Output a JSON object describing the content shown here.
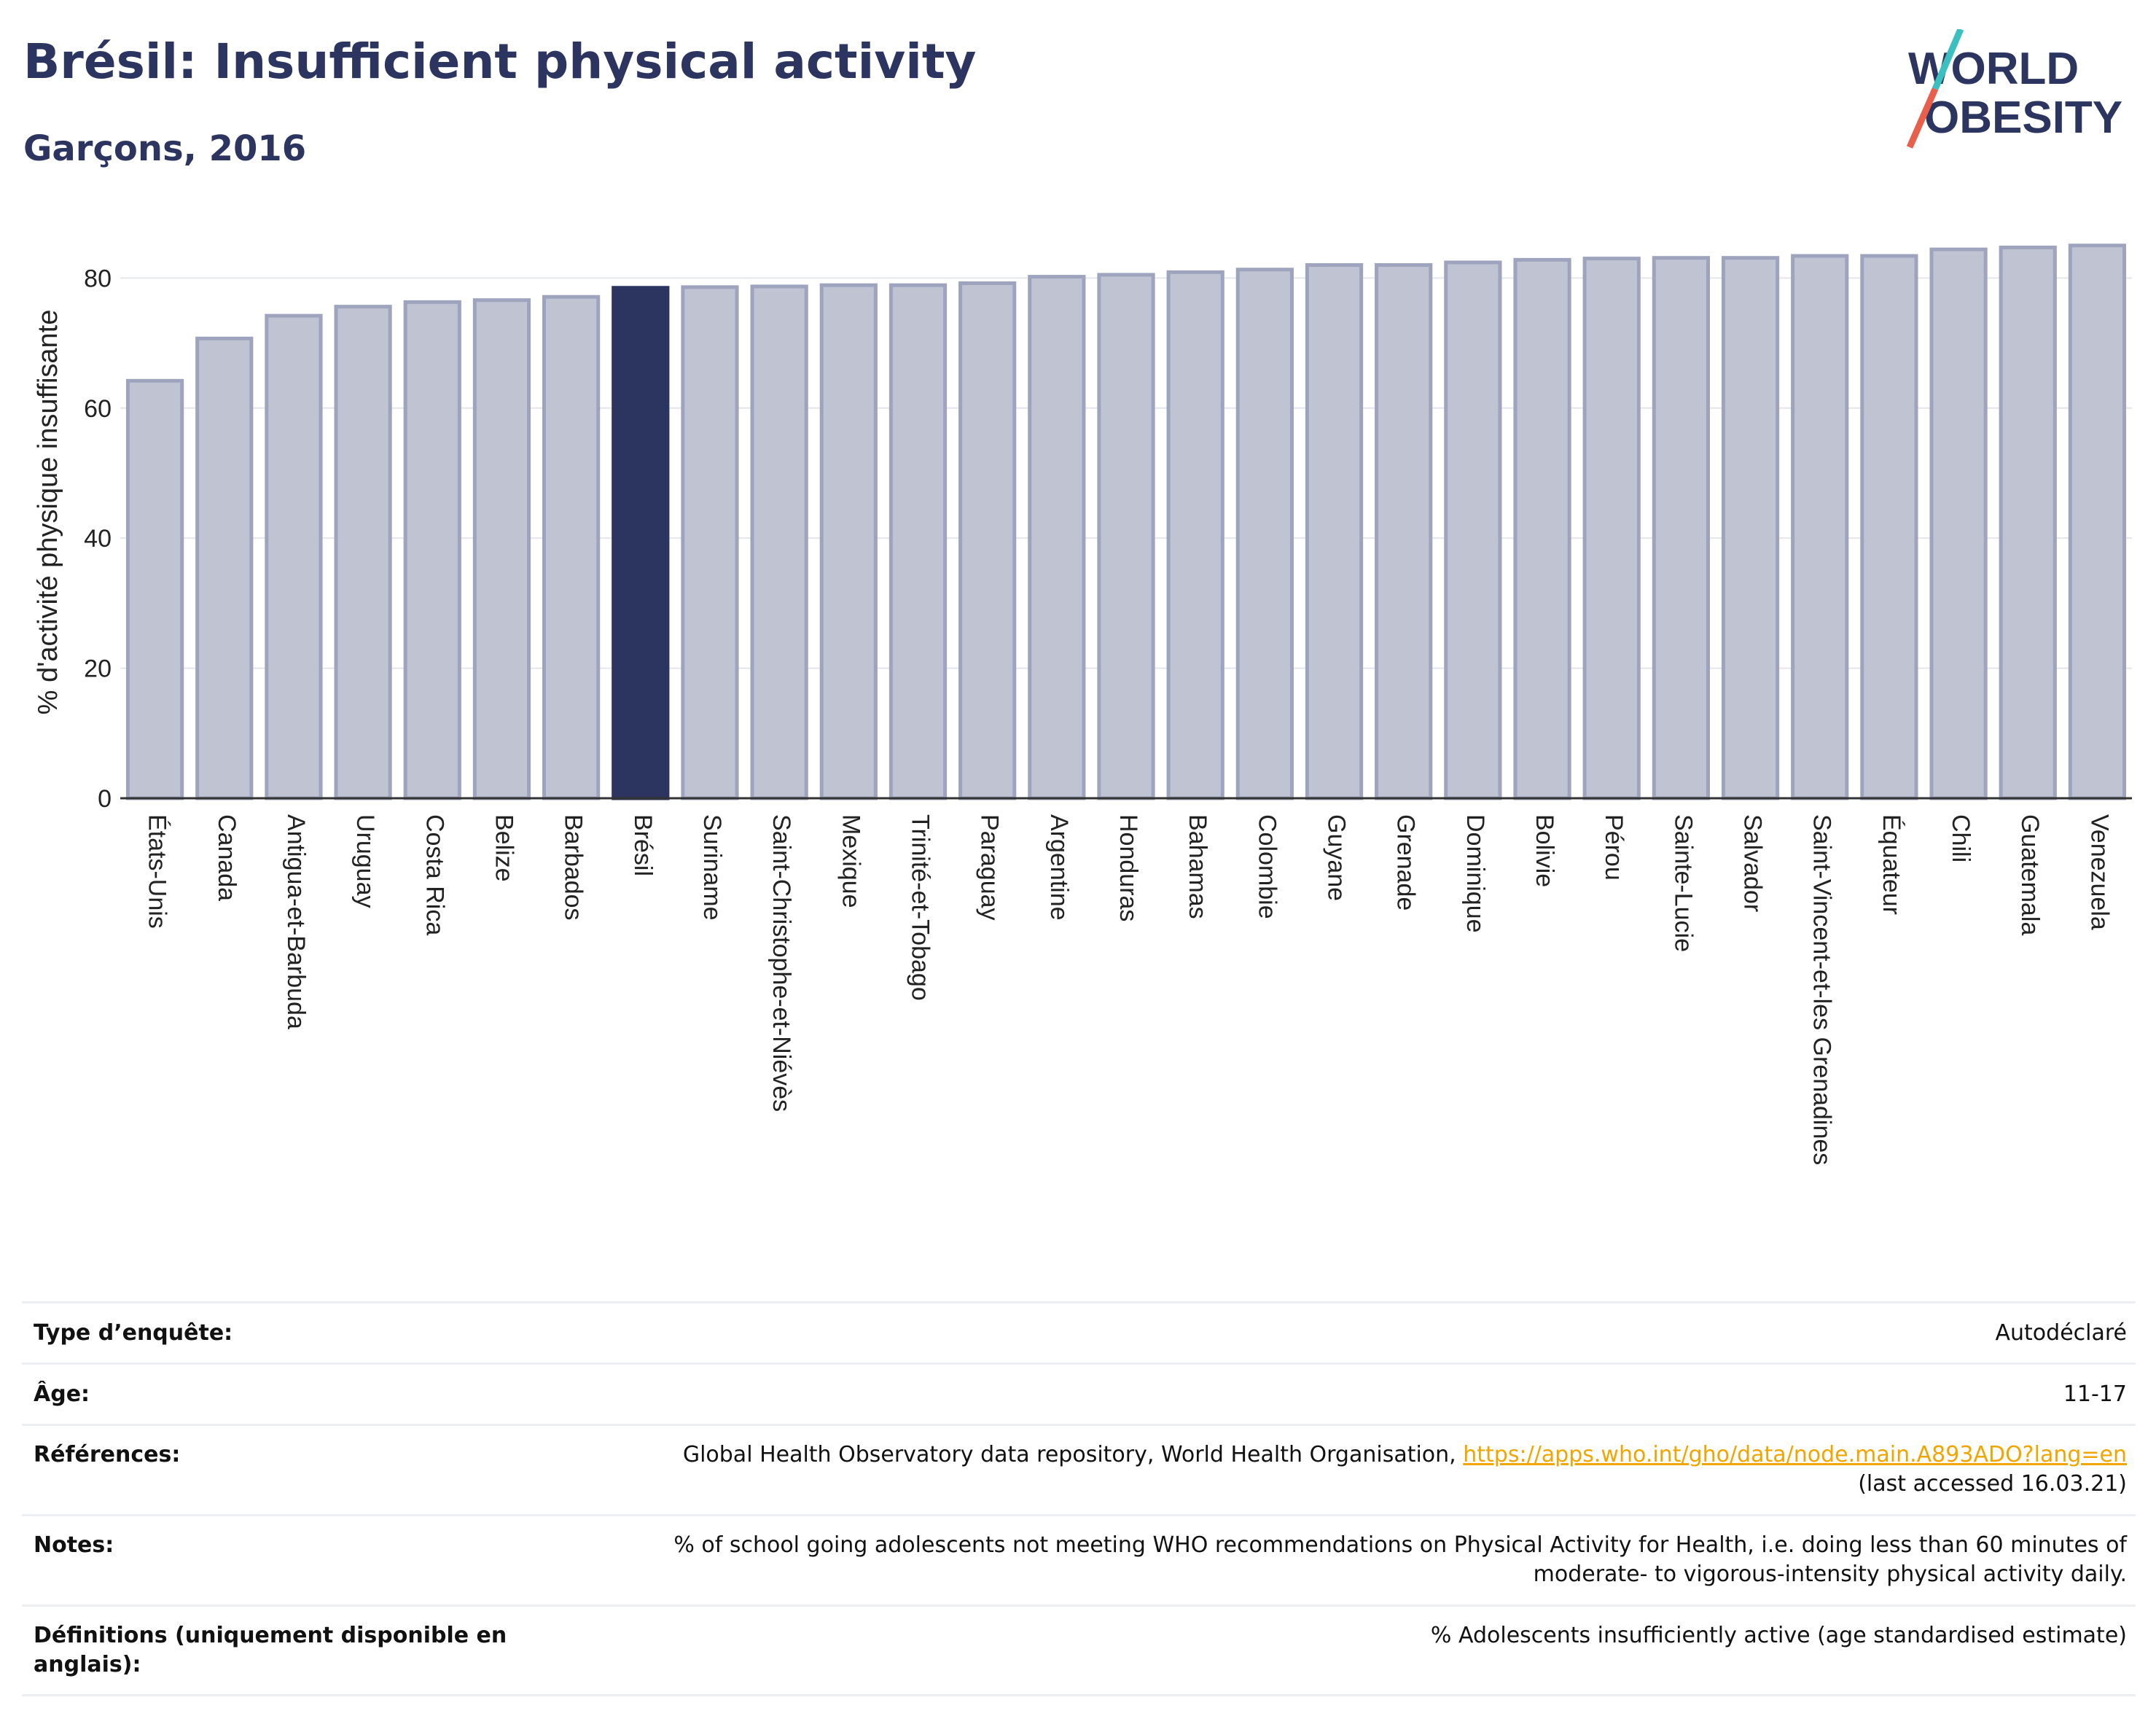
{
  "header": {
    "title": "Brésil: Insufficient physical activity",
    "subtitle": "Garçons, 2016"
  },
  "logo": {
    "line1": "WORLD",
    "line2": "OBESITY"
  },
  "colors": {
    "highlight": "#2b3560",
    "bar": "#c0c3d1",
    "bar_border": "#9ea4bd",
    "accent": "#f0a500"
  },
  "chart_data": {
    "type": "bar",
    "title": "",
    "xlabel": "",
    "ylabel": "% d'activité physique insuffisante",
    "ylim": [
      0,
      88
    ],
    "yticks": [
      0,
      20,
      40,
      60,
      80
    ],
    "grid": true,
    "highlight": "Brésil",
    "categories": [
      "États-Unis",
      "Canada",
      "Antigua-et-Barbuda",
      "Uruguay",
      "Costa Rica",
      "Belize",
      "Barbados",
      "Brésil",
      "Suriname",
      "Saint-Christophe-et-Niévès",
      "Mexique",
      "Trinité-et-Tobago",
      "Paraguay",
      "Argentine",
      "Honduras",
      "Bahamas",
      "Colombie",
      "Guyane",
      "Grenade",
      "Dominique",
      "Bolivie",
      "Pérou",
      "Sainte-Lucie",
      "Salvador",
      "Saint-Vincent-et-les Grenadines",
      "Équateur",
      "Chili",
      "Guatemala",
      "Venezuela"
    ],
    "values": [
      64.2,
      70.7,
      74.2,
      75.6,
      76.3,
      76.6,
      77.1,
      78.5,
      78.6,
      78.7,
      78.9,
      78.9,
      79.2,
      80.2,
      80.5,
      80.9,
      81.3,
      82.0,
      82.0,
      82.4,
      82.8,
      83.0,
      83.1,
      83.1,
      83.4,
      83.4,
      84.4,
      84.7,
      85.0
    ]
  },
  "info": {
    "rows": [
      {
        "label": "Type d’enquête:",
        "value": "Autodéclaré"
      },
      {
        "label": "Âge:",
        "value": "11-17"
      },
      {
        "label": "Références:",
        "value": "Global Health Observatory data repository, World Health Organisation,",
        "link": "https://apps.who.int/gho/data/node.main.A893ADO?lang=en",
        "value2": "(last accessed 16.03.21)"
      },
      {
        "label": "Notes:",
        "value": "% of school going adolescents not meeting WHO recommendations on Physical Activity for Health, i.e. doing less than 60 minutes of",
        "value2": "moderate- to vigorous-intensity physical activity daily."
      },
      {
        "label": "Définitions (uniquement disponible en anglais):",
        "value": "% Adolescents insufficiently active (age standardised estimate)"
      }
    ]
  }
}
